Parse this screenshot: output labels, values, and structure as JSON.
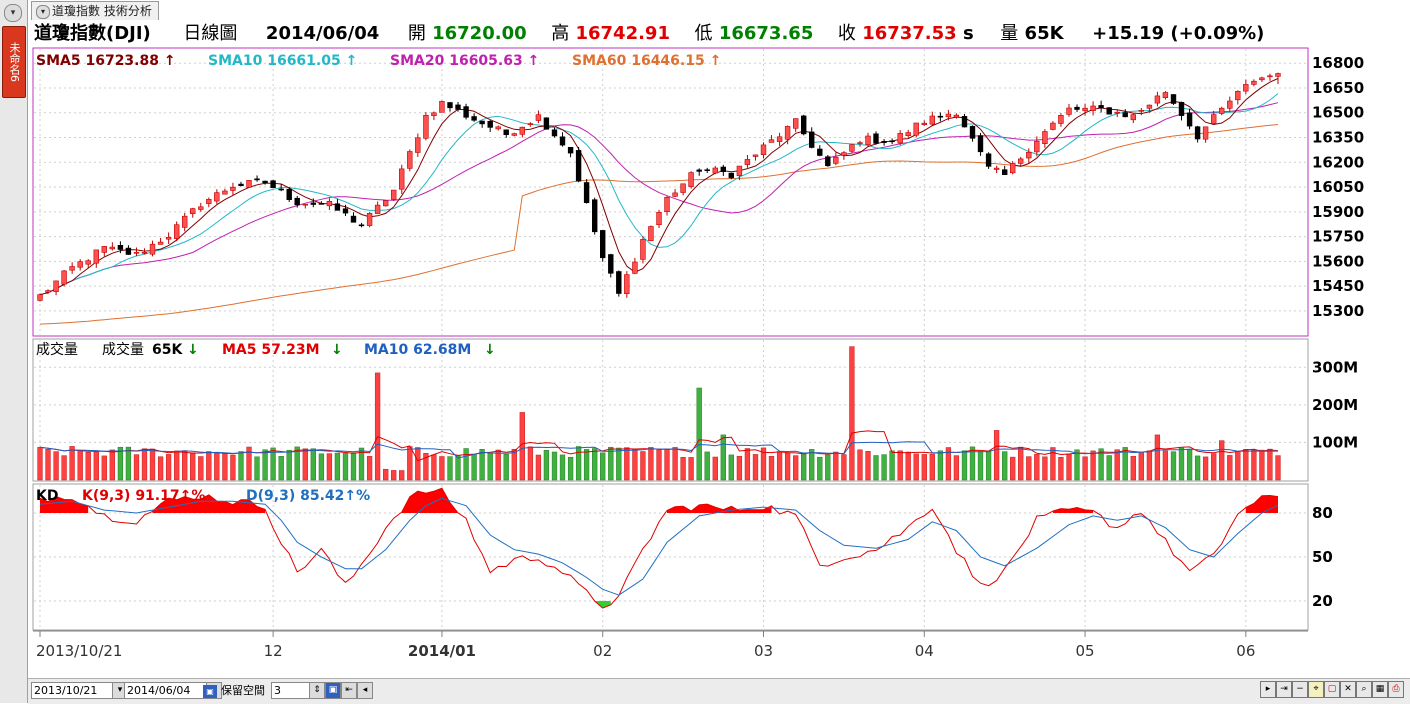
{
  "app": {
    "tab_title": "道瓊指數 技術分析",
    "side_tab_label": "未命名6"
  },
  "header": {
    "name": "道瓊指數(DJI)",
    "period": "日線圖",
    "date": "2014/06/04",
    "open_label": "開",
    "open": "16720.00",
    "high_label": "高",
    "high": "16742.91",
    "low_label": "低",
    "low": "16673.65",
    "close_label": "收",
    "close": "16737.53",
    "close_suffix": "s",
    "volume_label": "量",
    "volume": "65K",
    "change": "+15.19 (+0.09%)"
  },
  "bottom_bar": {
    "start_date": "2013/10/21",
    "separator": "~",
    "end_date": "2014/06/04",
    "reserve_label": "保留空間",
    "reserve_value": "3"
  },
  "colors": {
    "up": "#e00000",
    "down": "#000000",
    "sma5": "#800000",
    "sma10": "#22b8c8",
    "sma20": "#c020b0",
    "sma60": "#e07030",
    "vol_up": "#ff4040",
    "vol_down": "#40b040",
    "ma5_vol": "#e00000",
    "ma10_vol": "#2060c0",
    "k_line": "#e00000",
    "d_line": "#2070c0"
  },
  "chart_data": [
    {
      "type": "candlestick",
      "panel": "price",
      "indicators": [
        {
          "label": "SMA5",
          "value": "16723.88",
          "arrow": "↑",
          "color": "#800000"
        },
        {
          "label": "SMA10",
          "value": "16661.05",
          "arrow": "↑",
          "color": "#22b8c8"
        },
        {
          "label": "SMA20",
          "value": "16605.63",
          "arrow": "↑",
          "color": "#c020b0"
        },
        {
          "label": "SMA60",
          "value": "16446.15",
          "arrow": "↑",
          "color": "#e07030"
        }
      ],
      "y_ticks": [
        "16800",
        "16650",
        "16500",
        "16350",
        "16200",
        "16050",
        "15900",
        "15750",
        "15600",
        "15450",
        "15300"
      ],
      "ylim": [
        15160,
        16880
      ],
      "x_ticks": [
        {
          "label": "2013/10/21",
          "index": 0
        },
        {
          "label": "12",
          "index": 29
        },
        {
          "label": "2014/01",
          "index": 50
        },
        {
          "label": "02",
          "index": 70
        },
        {
          "label": "03",
          "index": 90
        },
        {
          "label": "04",
          "index": 110
        },
        {
          "label": "05",
          "index": 130
        },
        {
          "label": "06",
          "index": 150
        }
      ],
      "series_close_key_points": [
        [
          0,
          15390
        ],
        [
          4,
          15560
        ],
        [
          8,
          15680
        ],
        [
          12,
          15640
        ],
        [
          16,
          15760
        ],
        [
          20,
          15950
        ],
        [
          24,
          16060
        ],
        [
          28,
          16080
        ],
        [
          32,
          15960
        ],
        [
          36,
          15940
        ],
        [
          40,
          15820
        ],
        [
          44,
          16030
        ],
        [
          48,
          16480
        ],
        [
          50,
          16560
        ],
        [
          54,
          16460
        ],
        [
          58,
          16370
        ],
        [
          62,
          16480
        ],
        [
          66,
          16260
        ],
        [
          70,
          15620
        ],
        [
          72,
          15400
        ],
        [
          75,
          15730
        ],
        [
          78,
          15980
        ],
        [
          82,
          16160
        ],
        [
          86,
          16130
        ],
        [
          90,
          16290
        ],
        [
          94,
          16440
        ],
        [
          98,
          16170
        ],
        [
          102,
          16340
        ],
        [
          106,
          16330
        ],
        [
          110,
          16450
        ],
        [
          114,
          16510
        ],
        [
          118,
          16160
        ],
        [
          120,
          16120
        ],
        [
          124,
          16340
        ],
        [
          128,
          16520
        ],
        [
          132,
          16520
        ],
        [
          136,
          16480
        ],
        [
          140,
          16630
        ],
        [
          144,
          16360
        ],
        [
          148,
          16570
        ],
        [
          151,
          16700
        ],
        [
          154,
          16737.53
        ]
      ]
    },
    {
      "type": "bar",
      "panel": "volume",
      "indicators": [
        {
          "label": "成交量",
          "color": "#000000"
        },
        {
          "label": "成交量",
          "value": "65K",
          "arrow": "↓",
          "color": "#000000"
        },
        {
          "label": "MA5",
          "value": "57.23M",
          "arrow": "↓",
          "color": "#e00000"
        },
        {
          "label": "MA10",
          "value": "62.68M",
          "arrow": "↓",
          "color": "#2060c0"
        }
      ],
      "y_ticks": [
        "300M",
        "200M",
        "100M"
      ],
      "ylim": [
        0,
        370
      ]
    },
    {
      "type": "line",
      "panel": "kd",
      "indicators": [
        {
          "label": "KD",
          "color": "#000000"
        },
        {
          "label": "K(9,3)",
          "value": "91.17",
          "arrow": "↑",
          "unit": "%",
          "color": "#e00000"
        },
        {
          "label": "D(9,3)",
          "value": "85.42",
          "arrow": "↑",
          "unit": "%",
          "color": "#2070c0"
        }
      ],
      "y_ticks": [
        "80",
        "50",
        "20"
      ],
      "ylim": [
        0,
        100
      ],
      "upper_band": 80,
      "lower_band": 20,
      "k_key_points": [
        [
          0,
          90
        ],
        [
          4,
          92
        ],
        [
          8,
          78
        ],
        [
          12,
          75
        ],
        [
          16,
          88
        ],
        [
          20,
          92
        ],
        [
          24,
          88
        ],
        [
          28,
          85
        ],
        [
          30,
          60
        ],
        [
          32,
          40
        ],
        [
          35,
          55
        ],
        [
          38,
          30
        ],
        [
          40,
          45
        ],
        [
          43,
          70
        ],
        [
          46,
          90
        ],
        [
          48,
          95
        ],
        [
          50,
          94
        ],
        [
          53,
          75
        ],
        [
          56,
          40
        ],
        [
          59,
          48
        ],
        [
          62,
          50
        ],
        [
          65,
          40
        ],
        [
          68,
          25
        ],
        [
          70,
          17
        ],
        [
          72,
          22
        ],
        [
          75,
          55
        ],
        [
          78,
          82
        ],
        [
          82,
          85
        ],
        [
          86,
          82
        ],
        [
          90,
          85
        ],
        [
          94,
          78
        ],
        [
          97,
          45
        ],
        [
          100,
          50
        ],
        [
          104,
          55
        ],
        [
          108,
          70
        ],
        [
          111,
          85
        ],
        [
          114,
          55
        ],
        [
          117,
          30
        ],
        [
          120,
          40
        ],
        [
          124,
          75
        ],
        [
          128,
          82
        ],
        [
          131,
          80
        ],
        [
          134,
          70
        ],
        [
          137,
          82
        ],
        [
          140,
          60
        ],
        [
          143,
          40
        ],
        [
          146,
          50
        ],
        [
          149,
          80
        ],
        [
          152,
          89
        ],
        [
          154,
          91.17
        ]
      ],
      "d_key_points": [
        [
          0,
          86
        ],
        [
          4,
          88
        ],
        [
          8,
          82
        ],
        [
          12,
          80
        ],
        [
          16,
          84
        ],
        [
          20,
          88
        ],
        [
          24,
          88
        ],
        [
          28,
          86
        ],
        [
          30,
          75
        ],
        [
          32,
          60
        ],
        [
          35,
          50
        ],
        [
          38,
          42
        ],
        [
          40,
          42
        ],
        [
          43,
          55
        ],
        [
          46,
          75
        ],
        [
          48,
          85
        ],
        [
          50,
          90
        ],
        [
          53,
          85
        ],
        [
          56,
          65
        ],
        [
          59,
          55
        ],
        [
          62,
          52
        ],
        [
          65,
          46
        ],
        [
          68,
          36
        ],
        [
          70,
          28
        ],
        [
          72,
          24
        ],
        [
          75,
          35
        ],
        [
          78,
          60
        ],
        [
          82,
          78
        ],
        [
          86,
          82
        ],
        [
          90,
          84
        ],
        [
          94,
          82
        ],
        [
          97,
          68
        ],
        [
          100,
          58
        ],
        [
          104,
          56
        ],
        [
          108,
          62
        ],
        [
          111,
          74
        ],
        [
          114,
          68
        ],
        [
          117,
          50
        ],
        [
          120,
          44
        ],
        [
          124,
          56
        ],
        [
          128,
          72
        ],
        [
          131,
          78
        ],
        [
          134,
          75
        ],
        [
          137,
          78
        ],
        [
          140,
          70
        ],
        [
          143,
          55
        ],
        [
          146,
          50
        ],
        [
          149,
          66
        ],
        [
          152,
          80
        ],
        [
          154,
          85.42
        ]
      ]
    }
  ]
}
